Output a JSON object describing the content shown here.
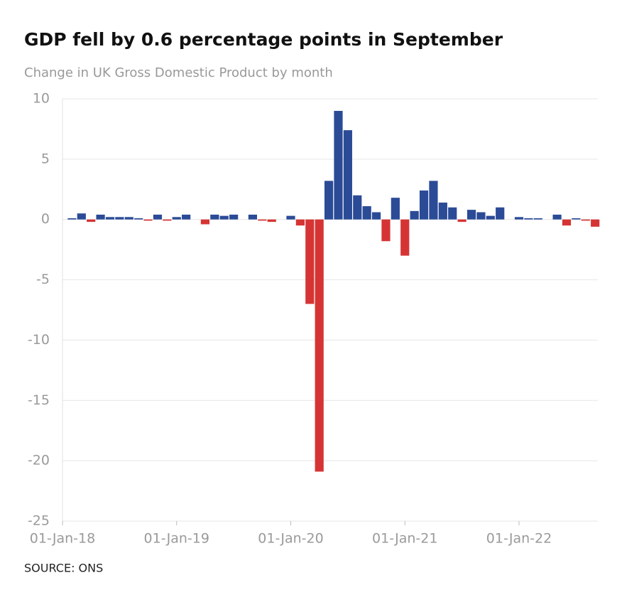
{
  "chart_data": {
    "type": "bar",
    "title": "GDP fell by 0.6 percentage points in September",
    "subtitle": "Change in UK Gross Domestic Product by month",
    "source": "SOURCE: ONS",
    "x": [
      "2018-02-01",
      "2018-03-01",
      "2018-04-01",
      "2018-05-01",
      "2018-06-01",
      "2018-07-01",
      "2018-08-01",
      "2018-09-01",
      "2018-10-01",
      "2018-11-01",
      "2018-12-01",
      "2019-01-01",
      "2019-02-01",
      "2019-03-01",
      "2019-04-01",
      "2019-05-01",
      "2019-06-01",
      "2019-07-01",
      "2019-08-01",
      "2019-09-01",
      "2019-10-01",
      "2019-11-01",
      "2019-12-01",
      "2020-01-01",
      "2020-02-01",
      "2020-03-01",
      "2020-04-01",
      "2020-05-01",
      "2020-06-01",
      "2020-07-01",
      "2020-08-01",
      "2020-09-01",
      "2020-10-01",
      "2020-11-01",
      "2020-12-01",
      "2021-01-01",
      "2021-02-01",
      "2021-03-01",
      "2021-04-01",
      "2021-05-01",
      "2021-06-01",
      "2021-07-01",
      "2021-08-01",
      "2021-09-01",
      "2021-10-01",
      "2021-11-01",
      "2021-12-01",
      "2022-01-01",
      "2022-02-01",
      "2022-03-01",
      "2022-04-01",
      "2022-05-01",
      "2022-06-01",
      "2022-07-01",
      "2022-08-01",
      "2022-09-01"
    ],
    "values": [
      0.1,
      0.5,
      -0.2,
      0.4,
      0.2,
      0.2,
      0.2,
      0.1,
      -0.1,
      0.4,
      -0.1,
      0.2,
      0.4,
      0,
      -0.4,
      0.4,
      0.3,
      0.4,
      0,
      0.4,
      -0.1,
      -0.2,
      0,
      0.3,
      -0.5,
      -7,
      -20.9,
      3.2,
      9.0,
      7.4,
      2.0,
      1.1,
      0.6,
      -1.8,
      1.8,
      -3.0,
      0.7,
      2.4,
      3.2,
      1.4,
      1.0,
      -0.2,
      0.8,
      0.6,
      0.3,
      1.0,
      0,
      0.2,
      0.1,
      0.1,
      0,
      0.4,
      -0.5,
      0.1,
      -0.1,
      -0.6
    ],
    "positive_color": "#2b4b97",
    "negative_color": "#d63434",
    "ylim": [
      -25,
      10
    ],
    "yticks": [
      -25,
      -20,
      -15,
      -10,
      -5,
      0,
      5,
      10
    ],
    "grid": true,
    "xticks": [
      {
        "value": "2018-01-01",
        "label": "01-Jan-18"
      },
      {
        "value": "2019-01-01",
        "label": "01-Jan-19"
      },
      {
        "value": "2020-01-01",
        "label": "01-Jan-20"
      },
      {
        "value": "2021-01-01",
        "label": "01-Jan-21"
      },
      {
        "value": "2022-01-01",
        "label": "01-Jan-22"
      }
    ]
  }
}
